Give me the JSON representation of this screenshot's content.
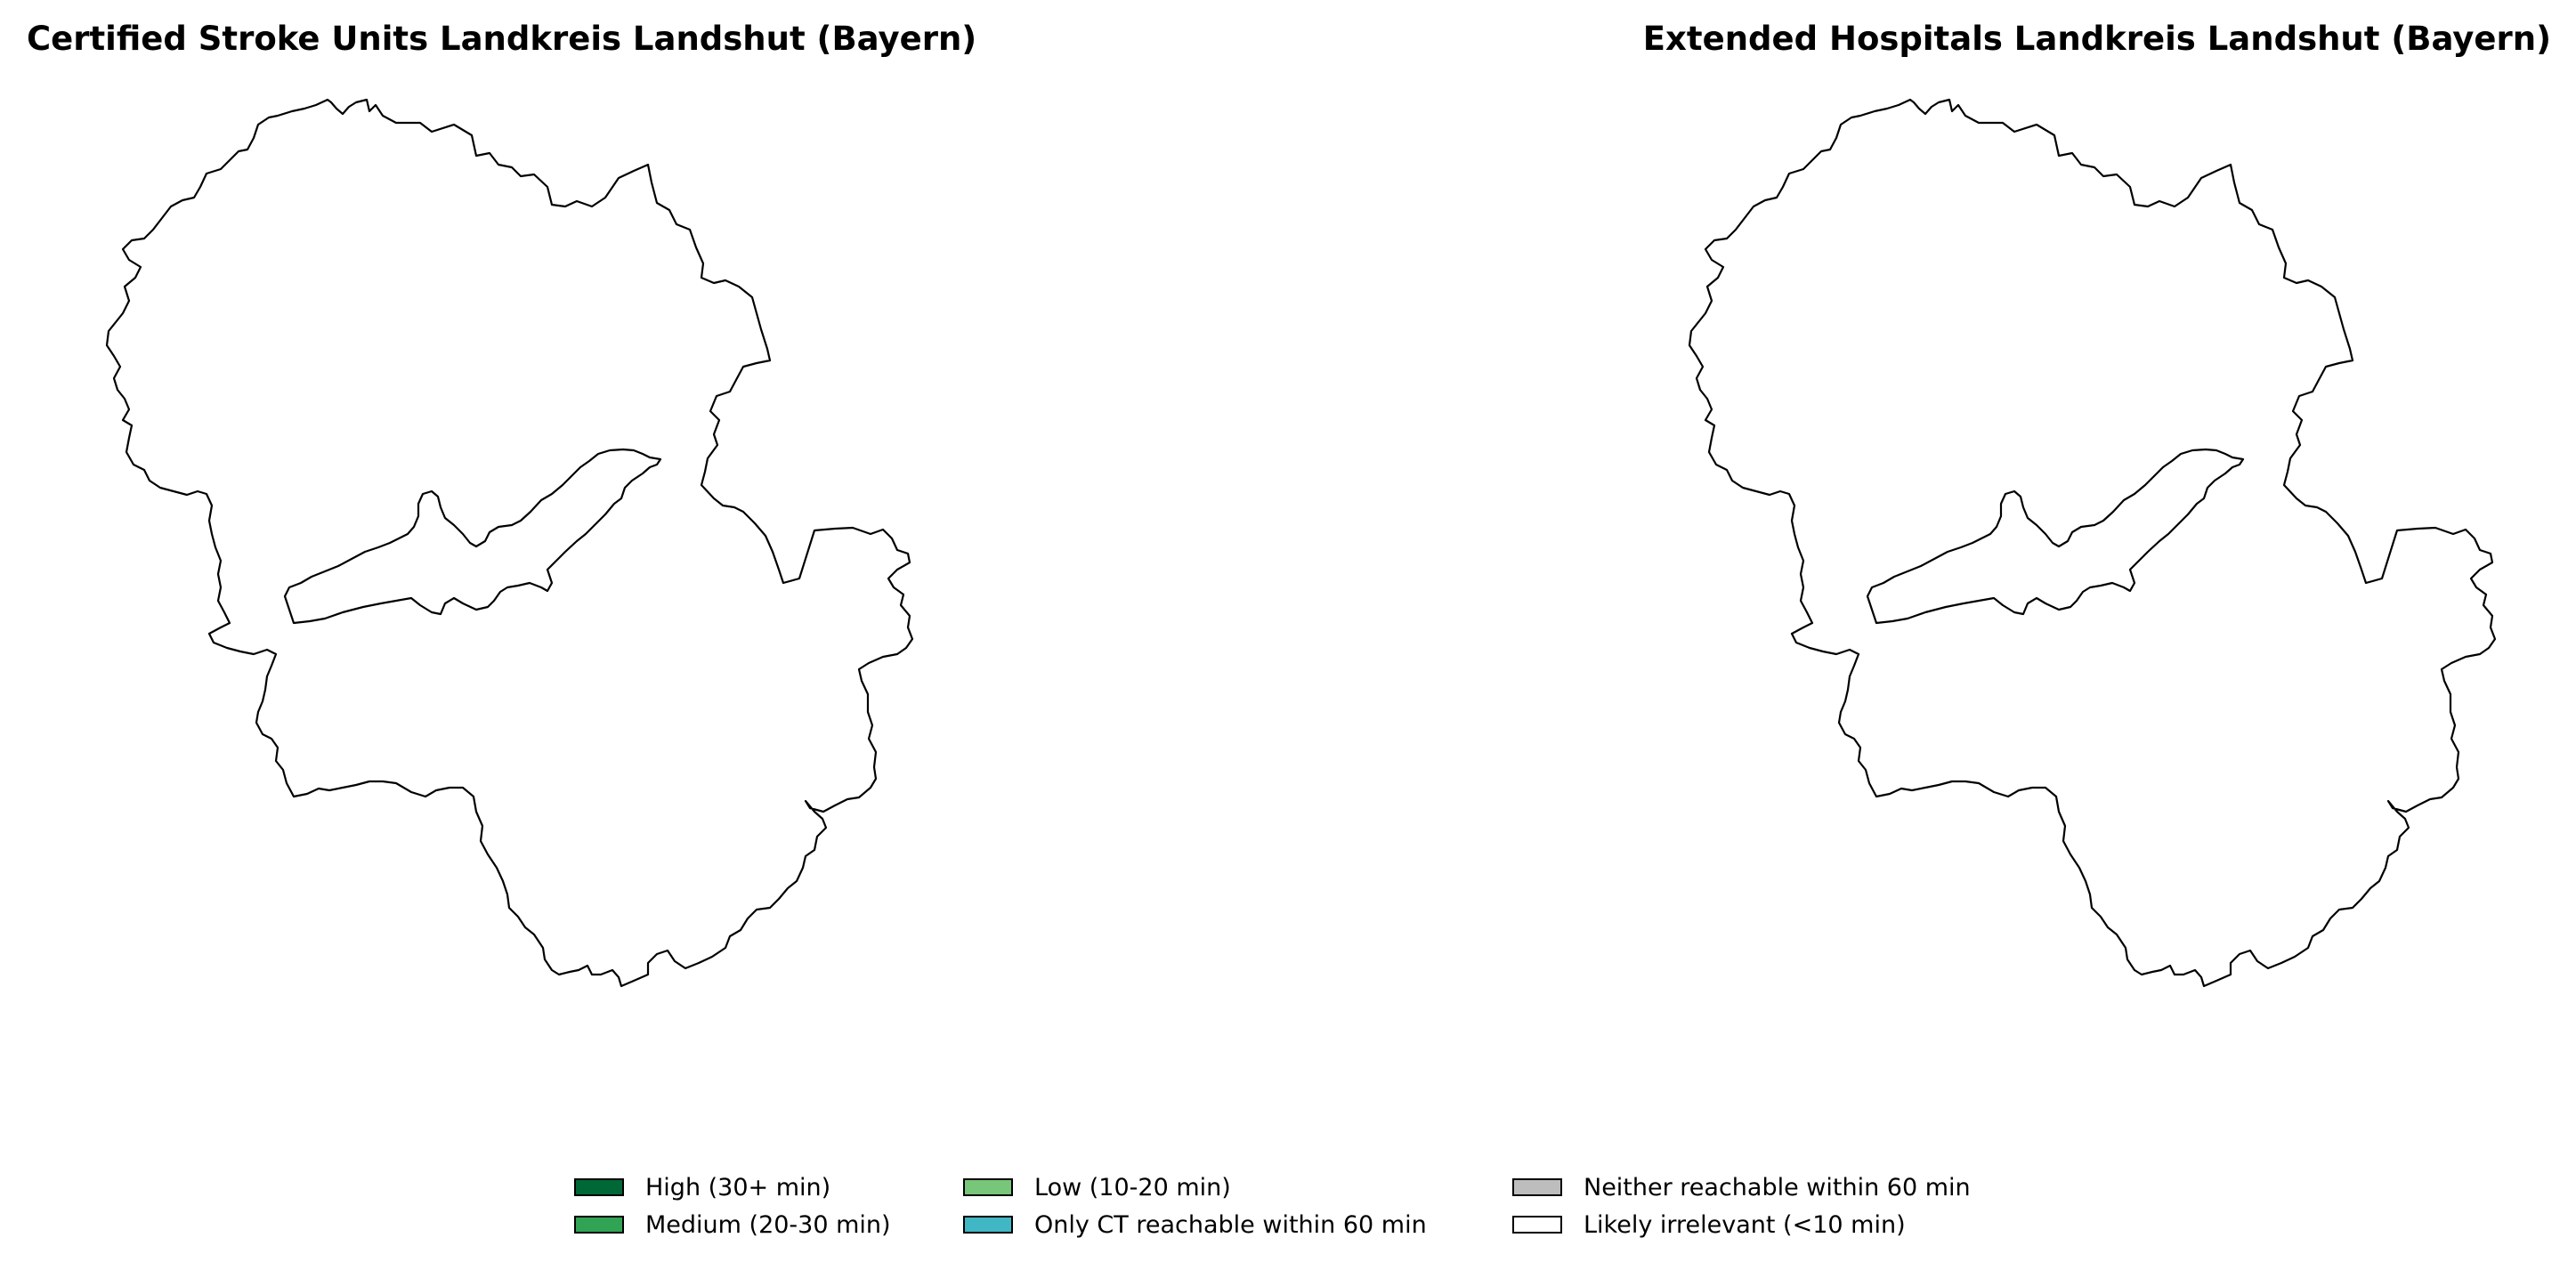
{
  "panels": [
    {
      "title": "Certified Stroke Units Landkreis Landshut (Bayern)"
    },
    {
      "title": "Extended Hospitals Landkreis Landshut (Bayern)"
    }
  ],
  "legend": {
    "items": [
      {
        "label": "High (30+ min)",
        "color": "#006837"
      },
      {
        "label": "Medium (20-30 min)",
        "color": "#31a354"
      },
      {
        "label": "Low (10-20 min)",
        "color": "#78c679"
      },
      {
        "label": "Only CT reachable within 60 min",
        "color": "#41b6c4"
      },
      {
        "label": "Neither reachable within 60 min",
        "color": "#bdbdbd"
      },
      {
        "label": "Likely irrelevant (<10 min)",
        "color": "#ffffff"
      }
    ]
  },
  "colors": {
    "boundary_stroke": "#000000",
    "region_fill": "#ffffff",
    "background": "#ffffff"
  }
}
